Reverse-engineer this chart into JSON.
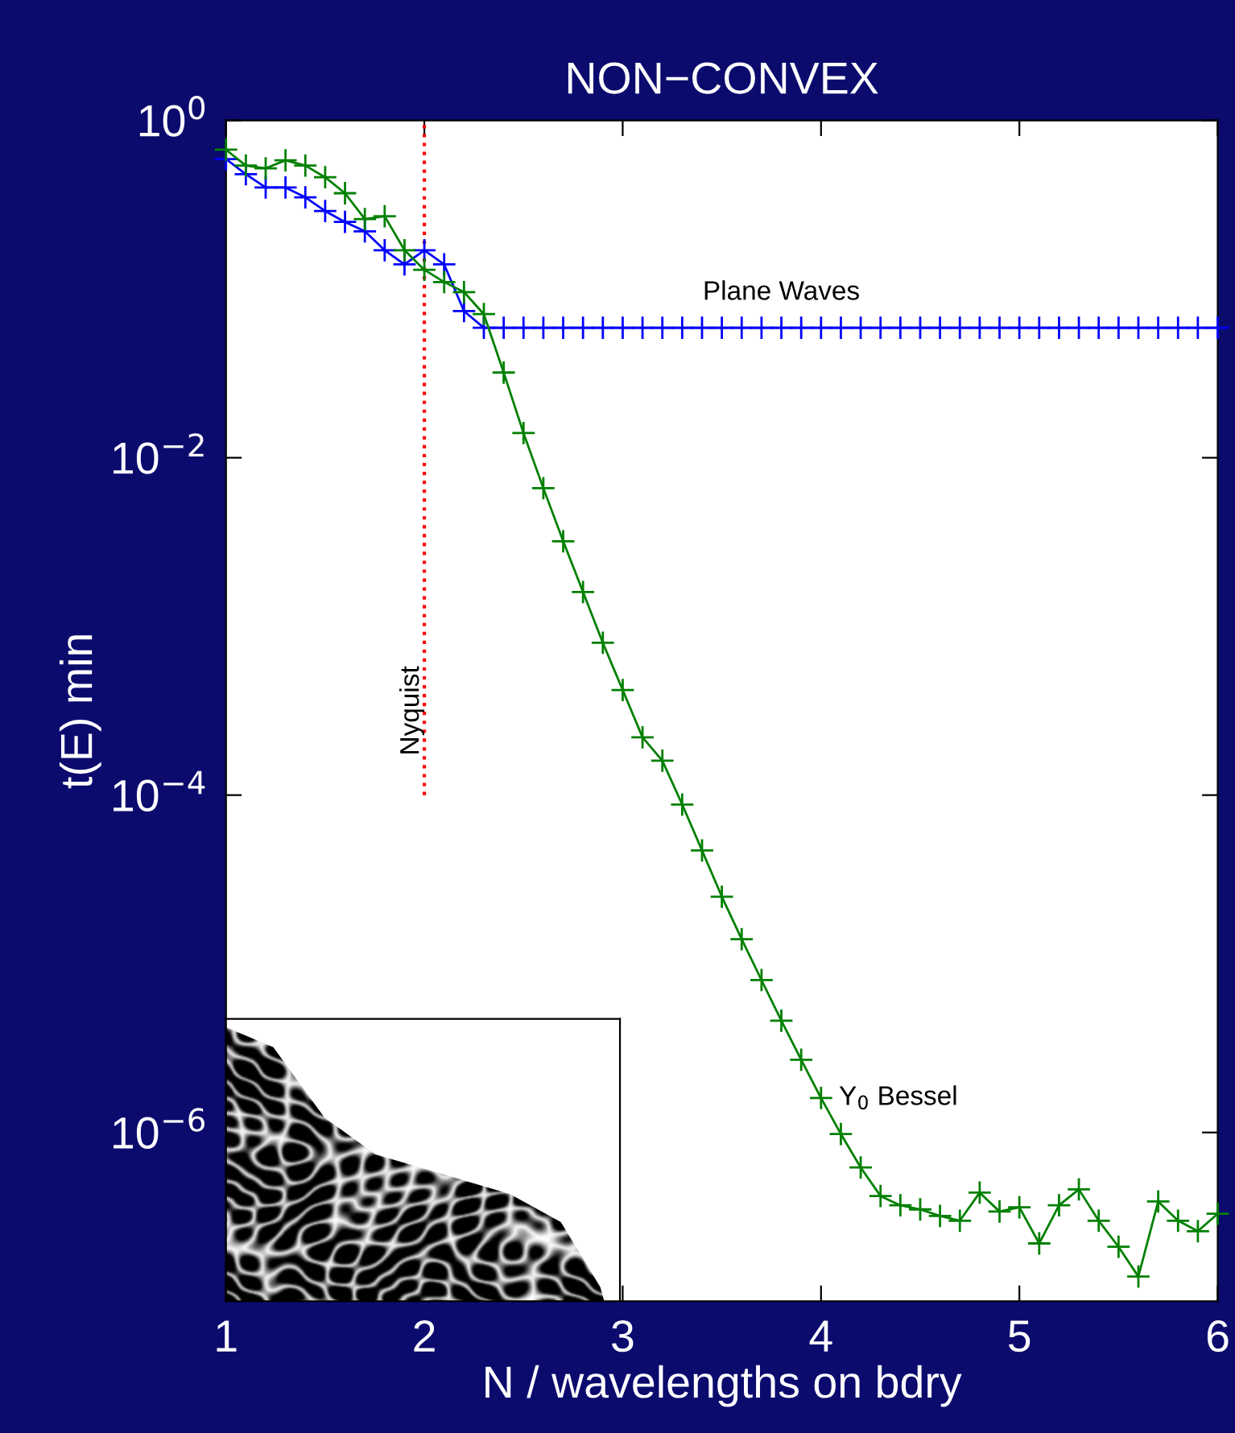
{
  "chart_data": {
    "type": "line",
    "title": "NON−CONVEX",
    "xlabel": "N / wavelengths on bdry",
    "ylabel": "t(E) min",
    "x": [
      1.0,
      1.1,
      1.2,
      1.3,
      1.4,
      1.5,
      1.6,
      1.7,
      1.8,
      1.9,
      2.0,
      2.1,
      2.2,
      2.3,
      2.4,
      2.5,
      2.6,
      2.7,
      2.8,
      2.9,
      3.0,
      3.1,
      3.2,
      3.3,
      3.4,
      3.5,
      3.6,
      3.7,
      3.8,
      3.9,
      4.0,
      4.1,
      4.2,
      4.3,
      4.4,
      4.5,
      4.6,
      4.7,
      4.8,
      4.9,
      5.0,
      5.1,
      5.2,
      5.3,
      5.4,
      5.5,
      5.6,
      5.7,
      5.8,
      5.9,
      6.0
    ],
    "series": [
      {
        "name": "Plane Waves",
        "color": "#0000ff",
        "values": [
          0.59,
          0.48,
          0.4,
          0.4,
          0.35,
          0.29,
          0.25,
          0.22,
          0.17,
          0.14,
          0.17,
          0.14,
          0.074,
          0.059,
          0.059,
          0.059,
          0.059,
          0.059,
          0.059,
          0.059,
          0.059,
          0.059,
          0.059,
          0.059,
          0.059,
          0.059,
          0.059,
          0.059,
          0.059,
          0.059,
          0.059,
          0.059,
          0.059,
          0.059,
          0.059,
          0.059,
          0.059,
          0.059,
          0.059,
          0.059,
          0.059,
          0.059,
          0.059,
          0.059,
          0.059,
          0.059,
          0.059,
          0.059,
          0.059,
          0.059,
          0.059
        ]
      },
      {
        "name": "Y$_{0}$ Bessel",
        "color": "#008000",
        "values": [
          0.67,
          0.54,
          0.52,
          0.58,
          0.54,
          0.46,
          0.37,
          0.26,
          0.27,
          0.17,
          0.13,
          0.11,
          0.096,
          0.071,
          0.032,
          0.014,
          0.0066,
          0.0032,
          0.0016,
          0.0008,
          0.00042,
          0.00022,
          0.00016,
          8.8e-05,
          4.7e-05,
          2.5e-05,
          1.4e-05,
          8e-06,
          4.6e-06,
          2.7e-06,
          1.6e-06,
          9.8e-07,
          6.2e-07,
          4.2e-07,
          3.7e-07,
          3.5e-07,
          3.2e-07,
          3e-07,
          4.4e-07,
          3.4e-07,
          3.6e-07,
          2.2e-07,
          3.7e-07,
          4.6e-07,
          3e-07,
          2.1e-07,
          1.4e-07,
          3.9e-07,
          3e-07,
          2.6e-07,
          3.3e-07
        ]
      }
    ],
    "log": "y",
    "xlim": [
      1,
      6
    ],
    "ylim": [
      1e-07,
      1
    ],
    "xticks": [
      1,
      2,
      3,
      4,
      5,
      6
    ],
    "yticks": [
      {
        "value": 1,
        "label": "10$^{0}$"
      },
      {
        "value": 0.01,
        "label": "10$^{−2}$"
      },
      {
        "value": 0.0001,
        "label": "10$^{−4}$"
      },
      {
        "value": 1e-06,
        "label": "10$^{−6}$"
      }
    ],
    "ref_lines": [
      {
        "axis": "x",
        "value": 2,
        "label": "Nyquist",
        "color": "#ff0000",
        "line_style": "dotted"
      }
    ],
    "marker": "cross",
    "line_style": "solid",
    "grid": false,
    "legend": false
  }
}
